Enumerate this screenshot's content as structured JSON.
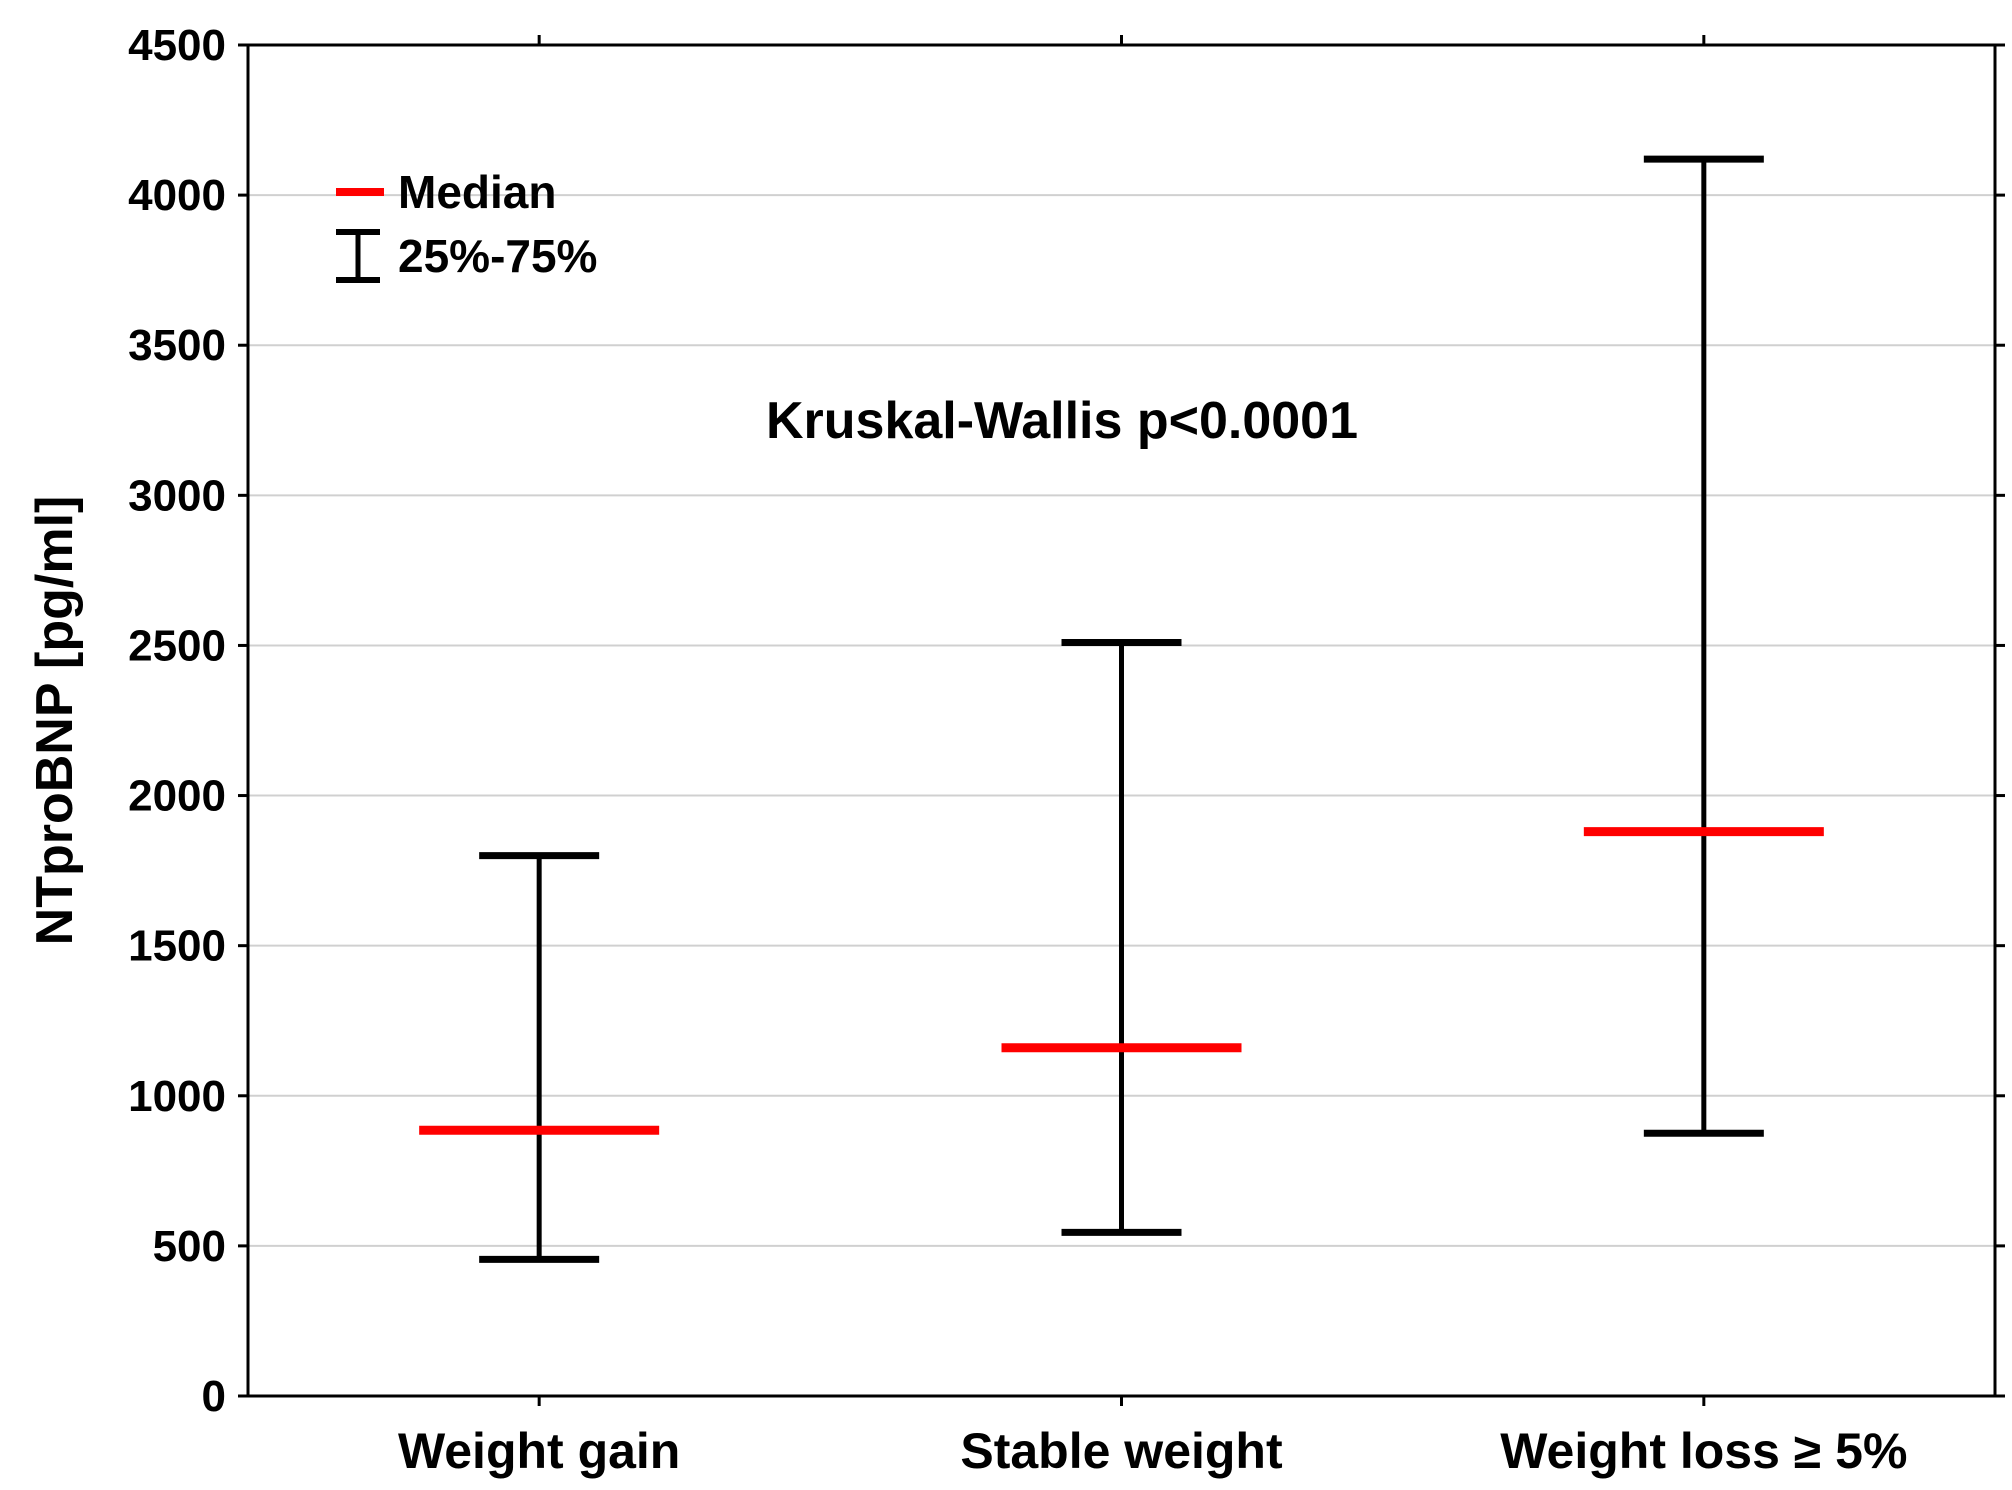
{
  "chart_data": {
    "type": "error-bar",
    "ylabel": "NTproBNP [pg/ml]",
    "ylim": [
      0,
      4500
    ],
    "yticks": [
      0,
      500,
      1000,
      1500,
      2000,
      2500,
      3000,
      3500,
      4000,
      4500
    ],
    "grid": true,
    "categories": [
      "Weight gain",
      "Stable weight",
      "Weight loss ≥ 5%"
    ],
    "median": [
      885,
      1160,
      1880
    ],
    "q25": [
      455,
      545,
      875
    ],
    "q75": [
      1800,
      2510,
      4120
    ],
    "annotation": "Kruskal-Wallis p<0.0001",
    "legend": {
      "position": "top-left",
      "median_label": "Median",
      "range_label": "25%-75%"
    },
    "colors": {
      "median": "#ff0000",
      "whisker": "#000000",
      "grid": "#d0d0d0"
    }
  }
}
